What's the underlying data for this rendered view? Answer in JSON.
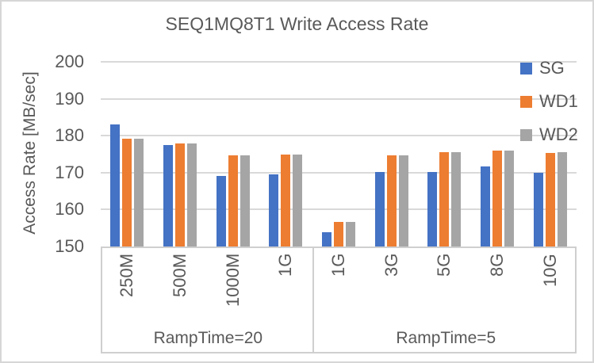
{
  "chart_data": {
    "type": "bar",
    "title": "SEQ1MQ8T1 Write Access Rate",
    "ylabel": "Access Rate [MB/sec]",
    "xlabel": "",
    "ylim": [
      150,
      200
    ],
    "yticks": [
      150,
      160,
      170,
      180,
      190,
      200
    ],
    "grid": true,
    "legend_position": "right-overlay",
    "groups": [
      {
        "label": "RampTime=20",
        "span": 4
      },
      {
        "label": "RampTime=5",
        "span": 5
      }
    ],
    "categories": [
      "250M",
      "500M",
      "1000M",
      "1G",
      "1G",
      "3G",
      "5G",
      "8G",
      "10G"
    ],
    "series": [
      {
        "name": "SG",
        "color": "#4472C4",
        "values": [
          183.0,
          177.5,
          169.0,
          169.5,
          153.9,
          170.2,
          170.2,
          171.6,
          170.0
        ]
      },
      {
        "name": "WD1",
        "color": "#ED7D31",
        "values": [
          179.1,
          177.8,
          174.6,
          175.0,
          156.7,
          174.6,
          175.5,
          175.9,
          175.4
        ]
      },
      {
        "name": "WD2",
        "color": "#A5A5A5",
        "values": [
          179.1,
          177.8,
          174.6,
          175.0,
          156.7,
          174.6,
          175.5,
          175.9,
          175.5
        ]
      }
    ]
  },
  "colors": {
    "text": "#595959",
    "gridline": "#D9D9D9",
    "axis_line": "#CFCFCF",
    "border": "#D6D6D6",
    "background": "#FFFFFF",
    "series_sg": "#4472C4",
    "series_wd1": "#ED7D31",
    "series_wd2": "#A5A5A5"
  }
}
